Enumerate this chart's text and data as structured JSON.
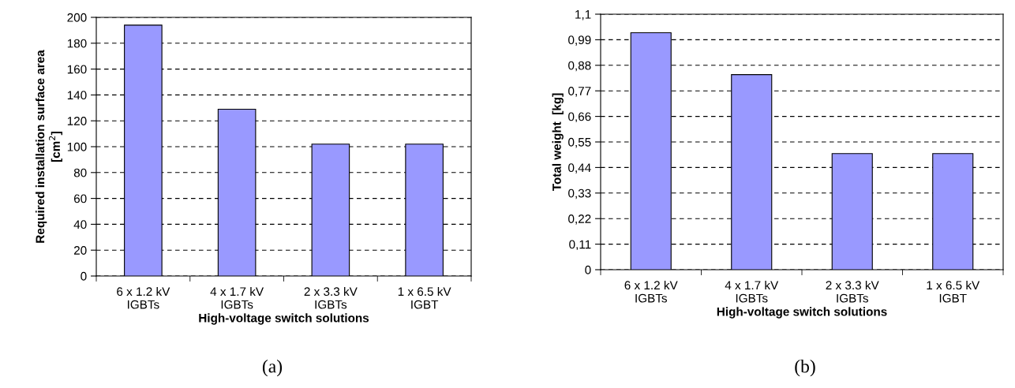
{
  "chart_data": [
    {
      "type": "bar",
      "xlabel": "High-voltage switch solutions",
      "ylabel": "Required installation surface area\n[cm$^{2}$]",
      "categories": [
        "6 x 1.2 kV\nIGBTs",
        "4 x 1.7 kV\nIGBTs",
        "2 x 3.3 kV\nIGBTs",
        "1 x 6.5 kV\nIGBT"
      ],
      "values": [
        194,
        129,
        102,
        102
      ],
      "color": "#9999ff",
      "ylim": [
        0,
        200
      ],
      "yticks": [
        0,
        20,
        40,
        60,
        80,
        100,
        120,
        140,
        160,
        180,
        200
      ],
      "grid": "y",
      "annotations": [
        "(a)"
      ]
    },
    {
      "type": "bar",
      "xlabel": "High-voltage switch solutions",
      "ylabel": "Total weight  [kg]",
      "categories": [
        "6 x 1.2 kV\nIGBTs",
        "4 x 1.7 kV\nIGBTs",
        "2 x 3.3 kV\nIGBTs",
        "1 x 6.5 kV\nIGBT"
      ],
      "values": [
        1.02,
        0.84,
        0.5,
        0.5
      ],
      "color": "#9999ff",
      "ylim": [
        0,
        1.1
      ],
      "yticks": [
        0,
        {
          "value": 0.11,
          "label": "0,11"
        },
        {
          "value": 0.22,
          "label": "0,22"
        },
        {
          "value": 0.33,
          "label": "0,33"
        },
        {
          "value": 0.44,
          "label": "0,44"
        },
        {
          "value": 0.55,
          "label": "0,55"
        },
        {
          "value": 0.66,
          "label": "0,66"
        },
        {
          "value": 0.77,
          "label": "0,77"
        },
        {
          "value": 0.88,
          "label": "0,88"
        },
        {
          "value": 0.99,
          "label": "0,99"
        },
        {
          "value": 1.1,
          "label": "1,1"
        }
      ],
      "grid": "y",
      "annotations": [
        "(b)"
      ]
    }
  ]
}
